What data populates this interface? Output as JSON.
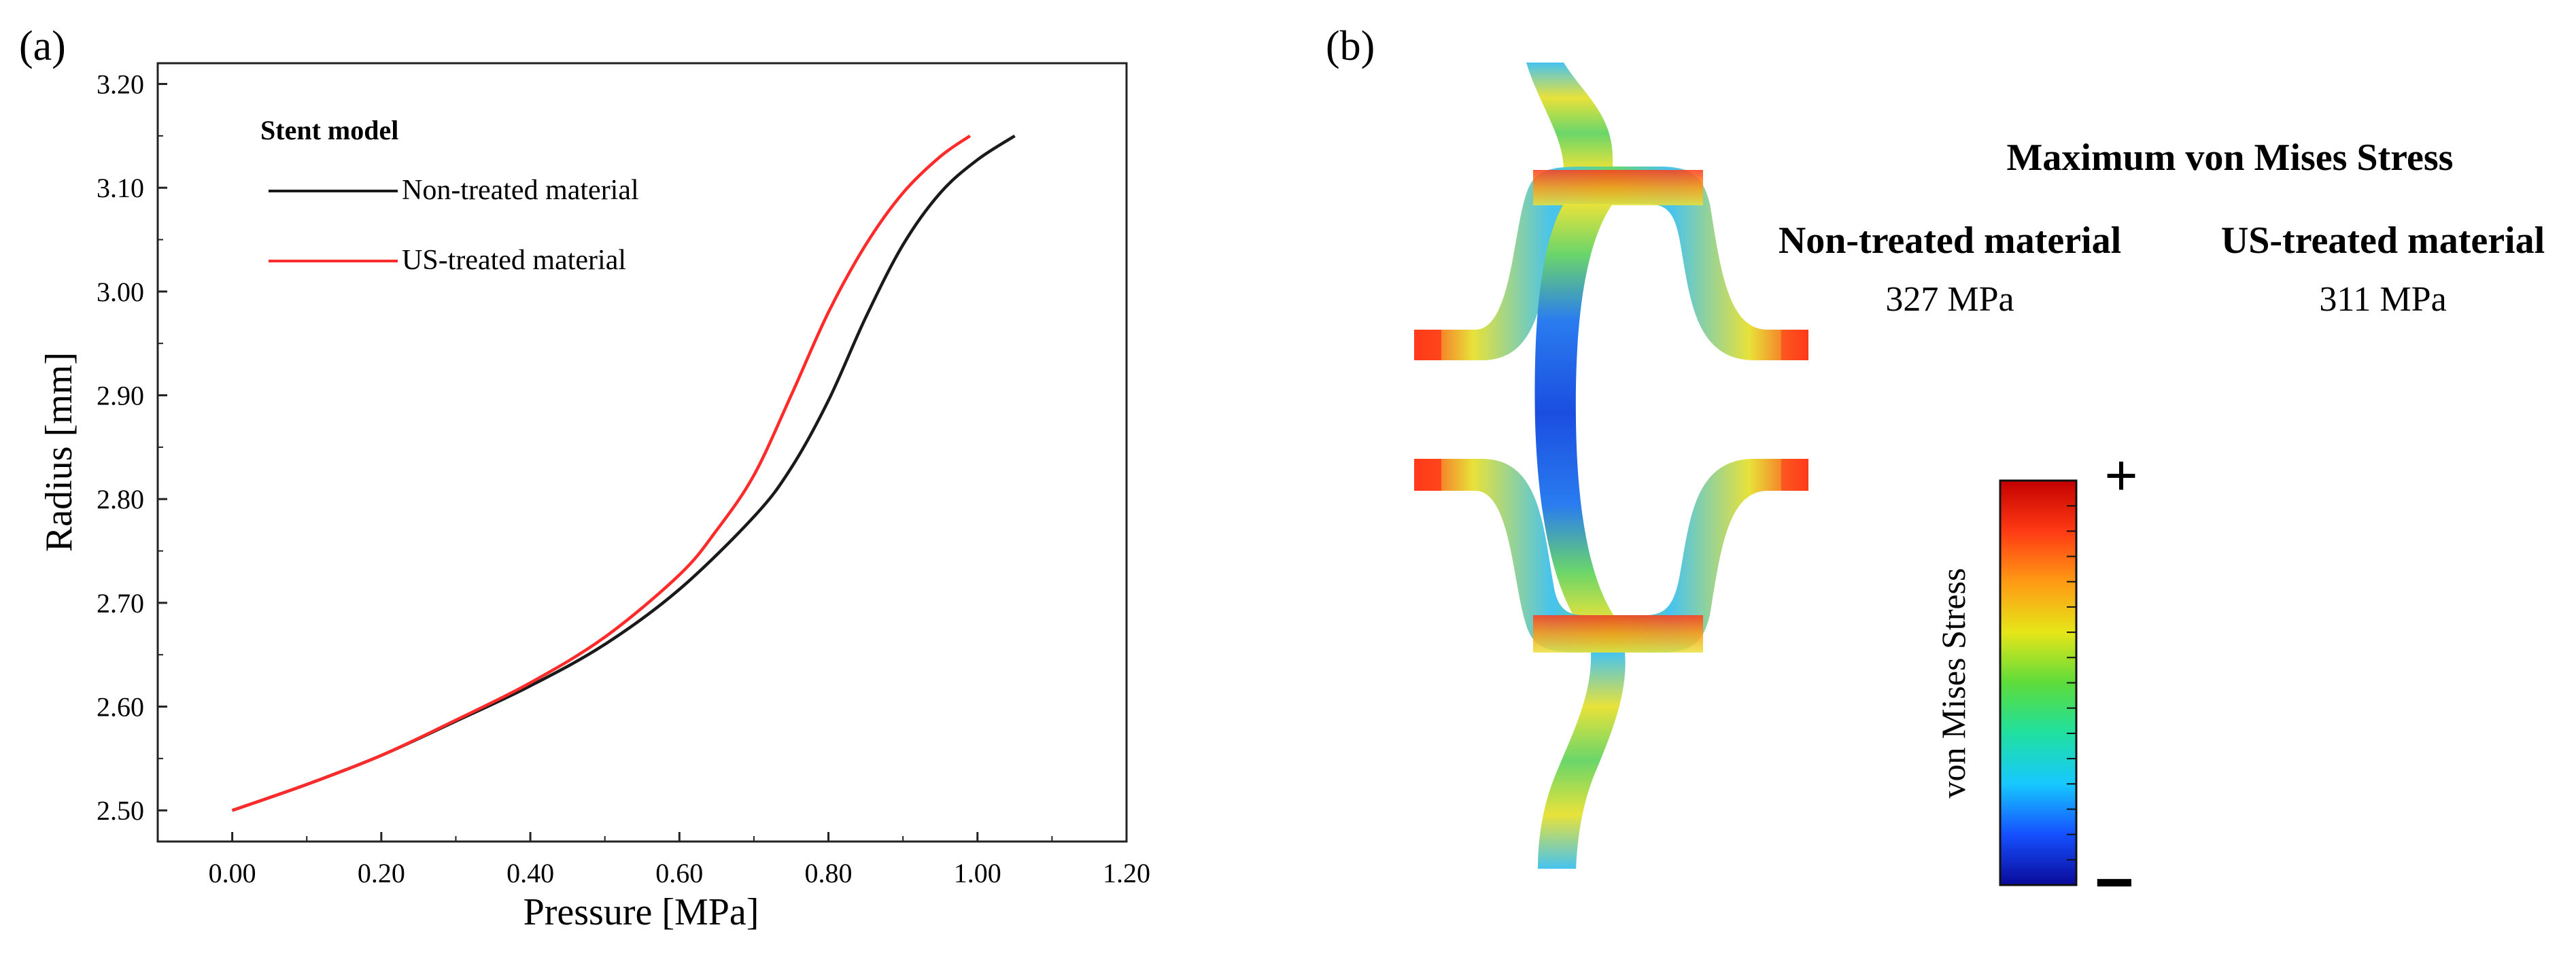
{
  "panel_a": {
    "label": "(a)",
    "legend": {
      "title": "Stent model",
      "items": [
        {
          "label": "Non-treated material",
          "color": "#1a1a1a"
        },
        {
          "label": "US-treated material",
          "color": "#ff2a2a"
        }
      ]
    }
  },
  "chart_data": {
    "type": "line",
    "title": "",
    "xlabel": "Pressure [MPa]",
    "ylabel": "Radius [mm]",
    "xlim": [
      -0.1,
      1.2
    ],
    "ylim": [
      2.47,
      3.22
    ],
    "xticks": [
      0.0,
      0.2,
      0.4,
      0.6,
      0.8,
      1.0,
      1.2
    ],
    "xtick_labels": [
      "0.00",
      "0.20",
      "0.40",
      "0.60",
      "0.80",
      "1.00",
      "1.20"
    ],
    "yticks": [
      2.5,
      2.6,
      2.7,
      2.8,
      2.9,
      3.0,
      3.1,
      3.2
    ],
    "ytick_labels": [
      "2.50",
      "2.60",
      "2.70",
      "2.80",
      "2.90",
      "3.00",
      "3.10",
      "3.20"
    ],
    "grid": false,
    "legend_position": "top-left",
    "series": [
      {
        "name": "Non-treated material",
        "color": "#1a1a1a",
        "x": [
          0.0,
          0.1,
          0.2,
          0.3,
          0.4,
          0.5,
          0.6,
          0.7,
          0.75,
          0.8,
          0.85,
          0.9,
          0.95,
          1.0,
          1.05
        ],
        "y": [
          2.5,
          2.525,
          2.553,
          2.586,
          2.62,
          2.66,
          2.713,
          2.783,
          2.83,
          2.895,
          2.975,
          3.045,
          3.095,
          3.127,
          3.15
        ]
      },
      {
        "name": "US-treated material",
        "color": "#ff2a2a",
        "x": [
          0.0,
          0.1,
          0.2,
          0.3,
          0.4,
          0.5,
          0.6,
          0.65,
          0.7,
          0.75,
          0.8,
          0.85,
          0.9,
          0.95,
          0.99
        ],
        "y": [
          2.5,
          2.525,
          2.553,
          2.587,
          2.623,
          2.667,
          2.727,
          2.77,
          2.823,
          2.9,
          2.98,
          3.045,
          3.095,
          3.13,
          3.15
        ]
      }
    ]
  },
  "panel_b": {
    "label": "(b)",
    "heading": "Maximum von Mises Stress",
    "results": [
      {
        "material": "Non-treated material",
        "value": "327 MPa"
      },
      {
        "material": "US-treated material",
        "value": "311 MPa"
      }
    ],
    "colorbar": {
      "label": "von Mises Stress",
      "max_symbol": "+",
      "min_symbol": "−",
      "colors": [
        "#0a0a9a",
        "#1550ff",
        "#17c8ff",
        "#1fe0a0",
        "#5ddc3a",
        "#e6e618",
        "#ff9a14",
        "#ff3a14",
        "#c40000"
      ]
    },
    "stent_colors": {
      "low": "#2a5cf0",
      "mid_low": "#46c3f0",
      "mid": "#6ad66a",
      "mid_high": "#e8e23a",
      "high": "#ff3a1a"
    }
  }
}
